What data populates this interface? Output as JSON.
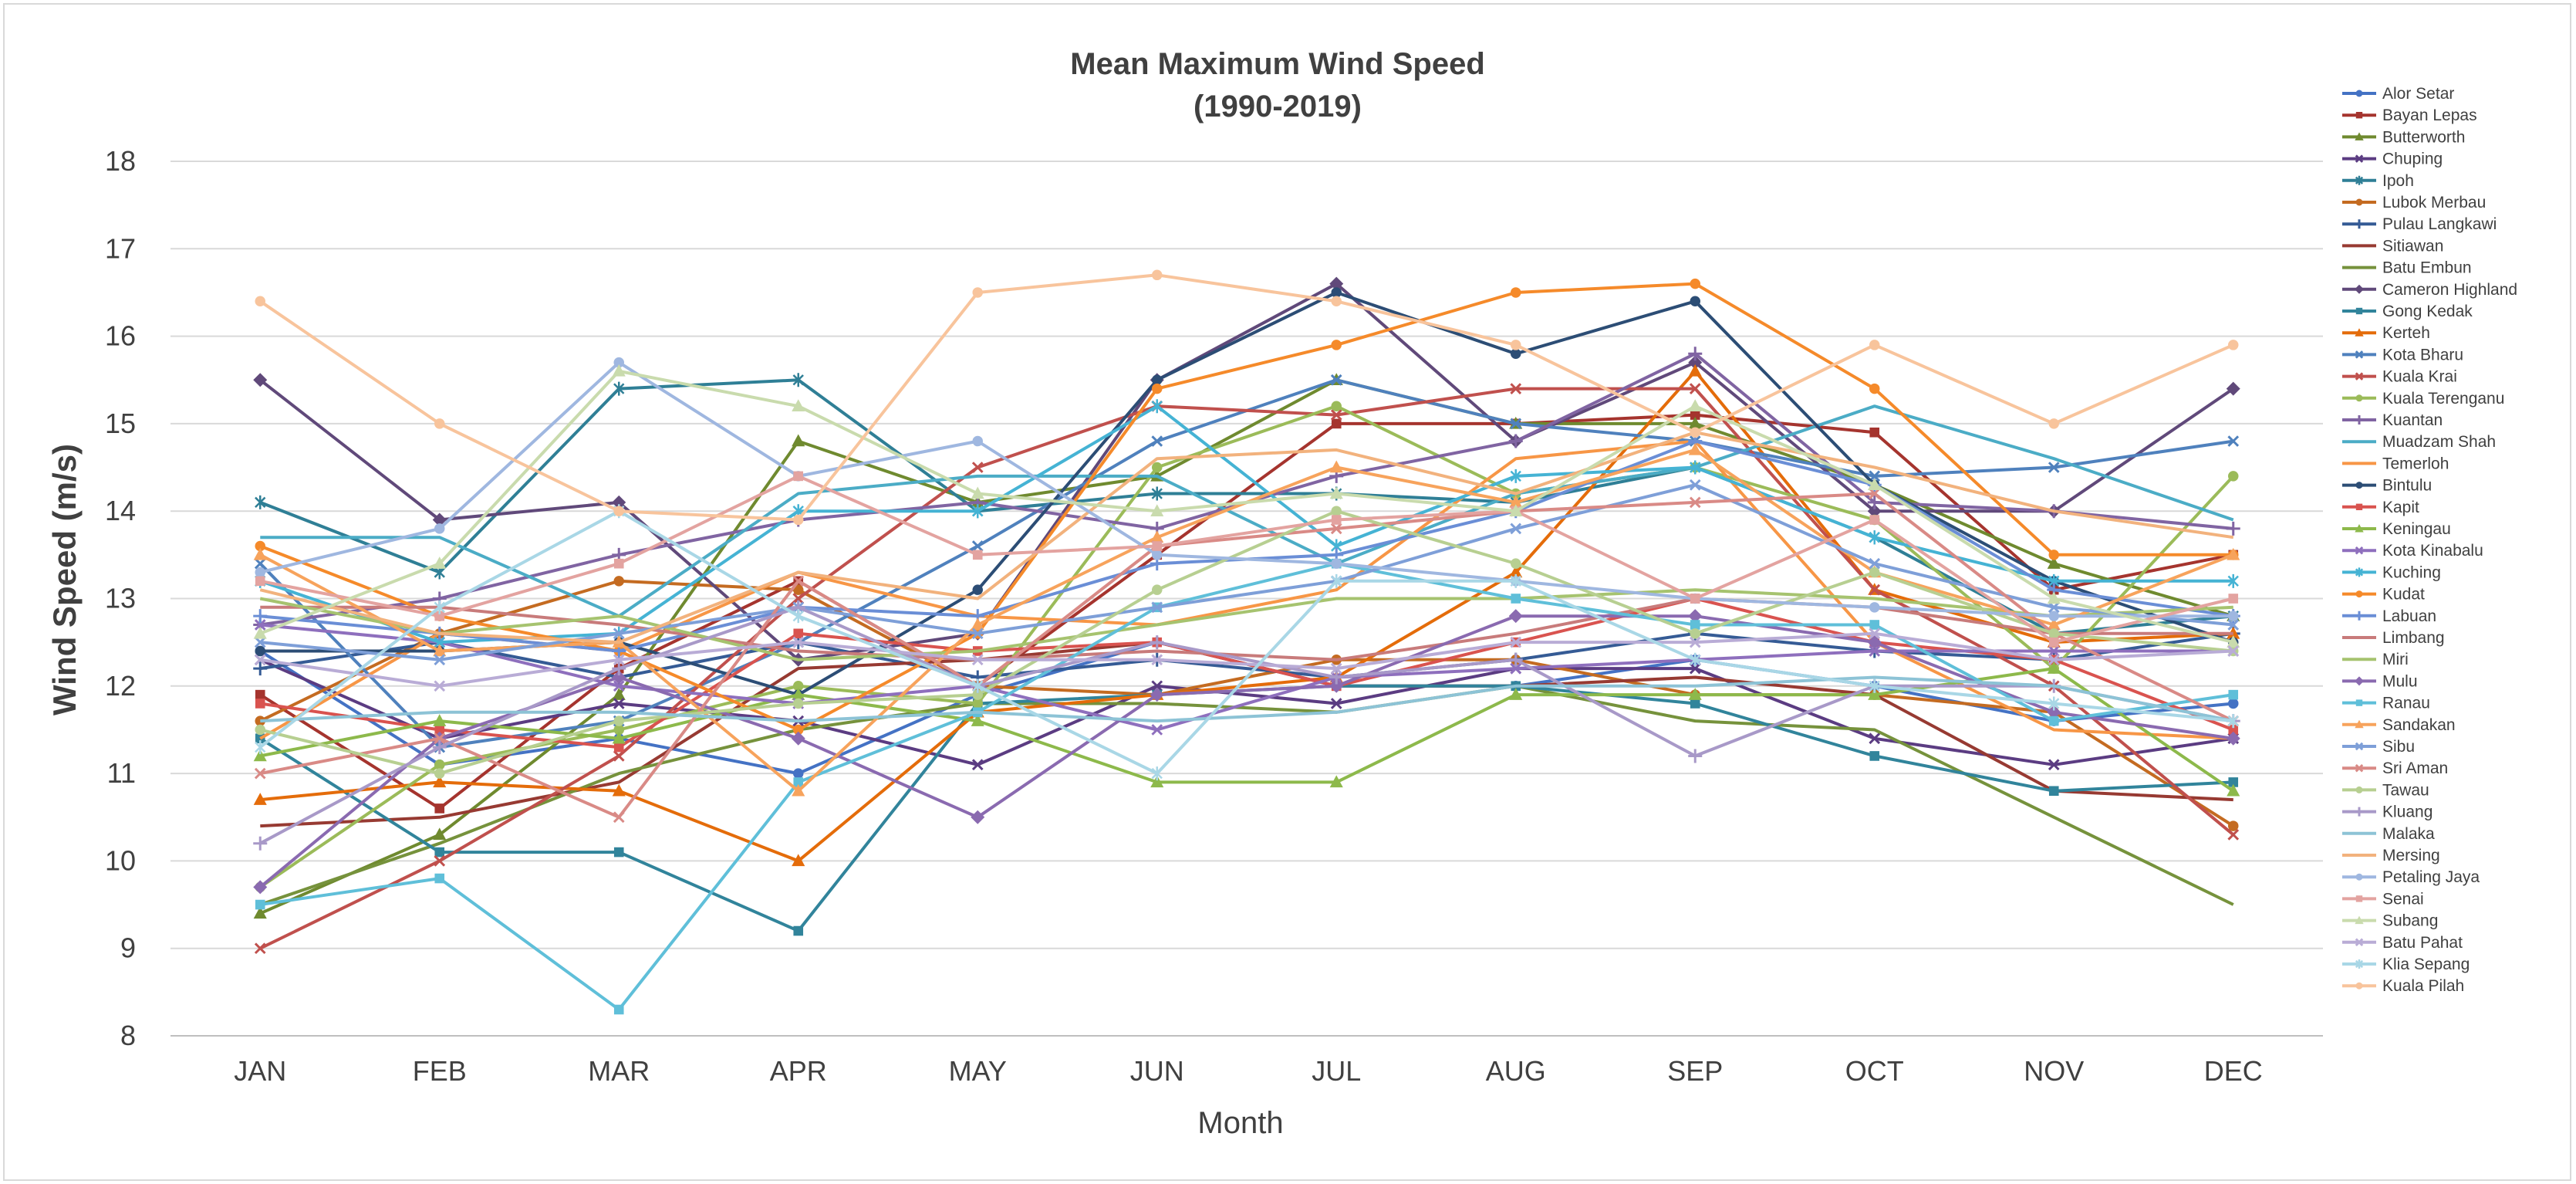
{
  "chart_data": {
    "type": "line",
    "title": "Mean Maximum Wind Speed",
    "subtitle": "(1990-2019)",
    "xlabel": "Month",
    "ylabel": "Wind Speed (m/s)",
    "ylim": [
      8,
      18
    ],
    "yticks": [
      "8",
      "9",
      "10",
      "11",
      "12",
      "13",
      "14",
      "15",
      "16",
      "17",
      "18"
    ],
    "grid": true,
    "legend_position": "right",
    "categories": [
      "JAN",
      "FEB",
      "MAR",
      "APR",
      "MAY",
      "JUN",
      "JUL",
      "AUG",
      "SEP",
      "OCT",
      "NOV",
      "DEC"
    ],
    "series": [
      {
        "name": "Alor Setar",
        "marker": "circle",
        "color": "#4472c4",
        "values": [
          12.4,
          11.1,
          11.4,
          11.0,
          11.9,
          12.5,
          12.0,
          12.0,
          12.3,
          12.0,
          11.6,
          11.8
        ]
      },
      {
        "name": "Bayan Lepas",
        "marker": "square",
        "color": "#a5342e",
        "values": [
          11.9,
          10.6,
          12.2,
          13.2,
          12.0,
          13.5,
          15.0,
          15.0,
          15.1,
          14.9,
          13.1,
          13.5
        ]
      },
      {
        "name": "Butterworth",
        "marker": "triangle",
        "color": "#6f8a2f",
        "values": [
          9.4,
          10.3,
          11.9,
          14.8,
          14.1,
          14.4,
          15.5,
          15.0,
          15.0,
          14.3,
          13.4,
          12.8
        ]
      },
      {
        "name": "Chuping",
        "marker": "x",
        "color": "#5b3c82",
        "values": [
          12.3,
          11.4,
          11.8,
          11.6,
          11.1,
          12.0,
          11.8,
          12.2,
          12.2,
          11.4,
          11.1,
          11.4
        ]
      },
      {
        "name": "Ipoh",
        "marker": "star",
        "color": "#2f7f96",
        "values": [
          14.1,
          13.3,
          15.4,
          15.5,
          14.0,
          14.2,
          14.2,
          14.1,
          14.5,
          13.7,
          12.6,
          12.8
        ]
      },
      {
        "name": "Lubok Merbau",
        "marker": "circle",
        "color": "#c46b21",
        "values": [
          11.6,
          12.6,
          13.2,
          13.1,
          12.0,
          11.9,
          12.3,
          12.3,
          11.9,
          11.9,
          11.7,
          10.4
        ]
      },
      {
        "name": "Pulau Langkawi",
        "marker": "plus",
        "color": "#355b95",
        "values": [
          12.2,
          12.5,
          12.1,
          12.5,
          12.1,
          12.3,
          12.1,
          12.3,
          12.6,
          12.4,
          12.3,
          12.6
        ]
      },
      {
        "name": "Sitiawan",
        "marker": "none",
        "color": "#973a32",
        "values": [
          10.4,
          10.5,
          10.9,
          12.2,
          12.3,
          12.5,
          12.0,
          12.0,
          12.1,
          11.9,
          10.8,
          10.7
        ]
      },
      {
        "name": "Batu Embun",
        "marker": "none",
        "color": "#76923c",
        "values": [
          9.5,
          10.2,
          11.0,
          11.5,
          11.8,
          11.8,
          11.7,
          12.0,
          11.6,
          11.5,
          10.5,
          9.5
        ]
      },
      {
        "name": "Cameron Highland",
        "marker": "diamond",
        "color": "#60497a",
        "values": [
          15.5,
          13.9,
          14.1,
          12.3,
          12.6,
          15.5,
          16.6,
          14.8,
          15.7,
          14.0,
          14.0,
          15.4
        ]
      },
      {
        "name": "Gong Kedak",
        "marker": "square",
        "color": "#31849b",
        "values": [
          11.4,
          10.1,
          10.1,
          9.2,
          11.8,
          11.9,
          12.0,
          12.0,
          11.8,
          11.2,
          10.8,
          10.9
        ]
      },
      {
        "name": "Kerteh",
        "marker": "triangle",
        "color": "#e46c0a",
        "values": [
          10.7,
          10.9,
          10.8,
          10.0,
          11.7,
          11.9,
          12.1,
          13.3,
          15.6,
          13.1,
          12.5,
          12.6
        ]
      },
      {
        "name": "Kota Bharu",
        "marker": "x",
        "color": "#4f81bd",
        "values": [
          13.4,
          11.3,
          11.6,
          12.5,
          13.6,
          14.8,
          15.5,
          15.0,
          14.8,
          14.4,
          14.5,
          14.8
        ]
      },
      {
        "name": "Kuala Krai",
        "marker": "x",
        "color": "#c0504d",
        "values": [
          9.0,
          10.0,
          11.2,
          13.0,
          14.5,
          15.2,
          15.1,
          15.4,
          15.4,
          13.1,
          12.0,
          10.3
        ]
      },
      {
        "name": "Kuala Terenganu",
        "marker": "circle",
        "color": "#9bbb59",
        "values": [
          9.7,
          11.1,
          11.5,
          12.0,
          11.8,
          14.5,
          15.2,
          14.2,
          14.5,
          13.9,
          12.2,
          14.4
        ]
      },
      {
        "name": "Kuantan",
        "marker": "plus",
        "color": "#8064a2",
        "values": [
          12.7,
          13.0,
          13.5,
          13.9,
          14.1,
          13.8,
          14.4,
          14.8,
          15.8,
          14.1,
          14.0,
          13.8
        ]
      },
      {
        "name": "Muadzam Shah",
        "marker": "none",
        "color": "#4bacc6",
        "values": [
          13.7,
          13.7,
          12.8,
          14.2,
          14.4,
          14.4,
          13.4,
          14.2,
          14.5,
          15.2,
          14.6,
          13.9
        ]
      },
      {
        "name": "Temerloh",
        "marker": "none",
        "color": "#f79646",
        "values": [
          11.4,
          12.6,
          12.4,
          13.3,
          12.8,
          12.7,
          13.1,
          14.6,
          14.8,
          12.5,
          11.5,
          11.4
        ]
      },
      {
        "name": "Bintulu",
        "marker": "circle",
        "color": "#2c4d75",
        "values": [
          12.4,
          12.4,
          12.5,
          11.9,
          13.1,
          15.5,
          16.5,
          15.8,
          16.4,
          14.3,
          13.2,
          12.5
        ]
      },
      {
        "name": "Kapit",
        "marker": "square",
        "color": "#d9534f",
        "values": [
          11.8,
          11.5,
          11.3,
          12.6,
          12.4,
          12.5,
          12.0,
          12.5,
          13.0,
          12.5,
          12.3,
          11.5
        ]
      },
      {
        "name": "Keningau",
        "marker": "triangle",
        "color": "#8db94b",
        "values": [
          11.2,
          11.6,
          11.4,
          11.9,
          11.6,
          10.9,
          10.9,
          11.9,
          11.9,
          11.9,
          12.2,
          10.8
        ]
      },
      {
        "name": "Kota Kinabalu",
        "marker": "x",
        "color": "#8e6fbd",
        "values": [
          12.7,
          12.5,
          12.0,
          11.8,
          12.0,
          11.5,
          12.1,
          12.2,
          12.3,
          12.4,
          12.4,
          12.4
        ]
      },
      {
        "name": "Kuching",
        "marker": "star",
        "color": "#45b3d4",
        "values": [
          13.2,
          12.5,
          12.6,
          14.0,
          14.0,
          15.2,
          13.6,
          14.4,
          14.5,
          13.7,
          13.2,
          13.2
        ]
      },
      {
        "name": "Kudat",
        "marker": "circle",
        "color": "#f58a2a",
        "values": [
          13.6,
          12.8,
          12.4,
          11.5,
          12.6,
          15.4,
          15.9,
          16.5,
          16.6,
          15.4,
          13.5,
          13.5
        ]
      },
      {
        "name": "Labuan",
        "marker": "plus",
        "color": "#6a8ed6",
        "values": [
          12.8,
          12.6,
          12.4,
          12.9,
          12.8,
          13.4,
          13.5,
          14.0,
          14.8,
          14.3,
          13.1,
          12.8
        ]
      },
      {
        "name": "Limbang",
        "marker": "none",
        "color": "#c87b7b",
        "values": [
          12.9,
          12.9,
          12.7,
          12.4,
          12.3,
          12.4,
          12.3,
          12.6,
          13.0,
          12.9,
          12.6,
          12.6
        ]
      },
      {
        "name": "Miri",
        "marker": "none",
        "color": "#a6c36f",
        "values": [
          13.0,
          12.6,
          12.8,
          12.3,
          12.4,
          12.7,
          13.0,
          13.0,
          13.1,
          13.0,
          12.8,
          12.9
        ]
      },
      {
        "name": "Mulu",
        "marker": "diamond",
        "color": "#8a6ab0",
        "values": [
          9.7,
          11.4,
          12.1,
          11.4,
          10.5,
          11.9,
          12.0,
          12.8,
          12.8,
          12.5,
          11.7,
          11.4
        ]
      },
      {
        "name": "Ranau",
        "marker": "square",
        "color": "#5fbfd9",
        "values": [
          9.5,
          9.8,
          8.3,
          10.9,
          11.7,
          12.9,
          13.4,
          13.0,
          12.7,
          12.7,
          11.6,
          11.9
        ]
      },
      {
        "name": "Sandakan",
        "marker": "triangle",
        "color": "#f7a35c",
        "values": [
          13.5,
          12.4,
          12.5,
          10.8,
          12.7,
          13.7,
          14.5,
          14.1,
          14.7,
          13.3,
          12.7,
          13.5
        ]
      },
      {
        "name": "Sibu",
        "marker": "x",
        "color": "#7e9fd8",
        "values": [
          12.5,
          12.3,
          12.6,
          12.9,
          12.6,
          12.9,
          13.2,
          13.8,
          14.3,
          13.4,
          12.9,
          12.7
        ]
      },
      {
        "name": "Sri Aman",
        "marker": "x",
        "color": "#d98a86",
        "values": [
          11.0,
          11.4,
          10.5,
          13.2,
          12.0,
          13.6,
          13.8,
          14.0,
          14.1,
          14.2,
          12.6,
          11.6
        ]
      },
      {
        "name": "Tawau",
        "marker": "circle",
        "color": "#b7cf91",
        "values": [
          11.5,
          11.0,
          11.6,
          11.8,
          11.9,
          13.1,
          14.0,
          13.4,
          12.6,
          13.3,
          12.6,
          12.4
        ]
      },
      {
        "name": "Kluang",
        "marker": "plus",
        "color": "#a899c8",
        "values": [
          10.2,
          11.3,
          12.2,
          12.9,
          12.0,
          12.5,
          12.1,
          12.3,
          11.2,
          12.0,
          12.0,
          11.6
        ]
      },
      {
        "name": "Malaka",
        "marker": "none",
        "color": "#8dc3d6",
        "values": [
          11.6,
          11.7,
          11.7,
          11.6,
          11.7,
          11.6,
          11.7,
          12.0,
          12.0,
          12.1,
          12.0,
          11.6
        ]
      },
      {
        "name": "Mersing",
        "marker": "none",
        "color": "#f2b27d",
        "values": [
          13.1,
          12.6,
          12.5,
          13.3,
          13.0,
          14.6,
          14.7,
          14.2,
          14.9,
          14.5,
          14.0,
          13.7
        ]
      },
      {
        "name": "Petaling Jaya",
        "marker": "circle",
        "color": "#9fb7e0",
        "values": [
          13.3,
          13.8,
          15.7,
          14.4,
          14.8,
          13.5,
          13.4,
          13.2,
          13.0,
          12.9,
          12.8,
          12.8
        ]
      },
      {
        "name": "Senai",
        "marker": "square",
        "color": "#e3a3a0",
        "values": [
          13.2,
          12.8,
          13.4,
          14.4,
          13.5,
          13.6,
          13.9,
          14.0,
          13.0,
          13.9,
          12.5,
          13.0
        ]
      },
      {
        "name": "Subang",
        "marker": "triangle",
        "color": "#c9dbad",
        "values": [
          12.6,
          13.4,
          15.6,
          15.2,
          14.2,
          14.0,
          14.2,
          14.0,
          15.2,
          14.3,
          13.0,
          12.5
        ]
      },
      {
        "name": "Batu Pahat",
        "marker": "x",
        "color": "#b9acd6",
        "values": [
          12.3,
          12.0,
          12.3,
          12.5,
          12.3,
          12.3,
          12.2,
          12.5,
          12.5,
          12.6,
          12.3,
          12.4
        ]
      },
      {
        "name": "Klia Sepang",
        "marker": "star",
        "color": "#a9d7e6",
        "values": [
          11.3,
          12.9,
          14.0,
          12.8,
          12.0,
          11.0,
          13.2,
          13.2,
          12.3,
          12.0,
          11.8,
          11.6
        ]
      },
      {
        "name": "Kuala Pilah",
        "marker": "circle",
        "color": "#f8c49c",
        "values": [
          16.4,
          15.0,
          14.0,
          13.9,
          16.5,
          16.7,
          16.4,
          15.9,
          14.9,
          15.9,
          15.0,
          15.9
        ]
      }
    ]
  }
}
